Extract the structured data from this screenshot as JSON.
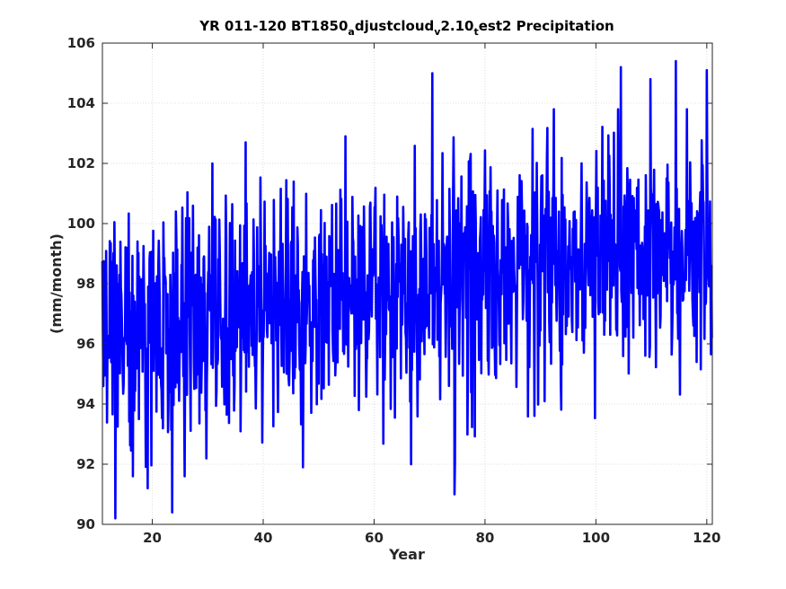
{
  "chart_data": {
    "type": "line",
    "title_parts": [
      {
        "text": "YR 011-120 BT1850",
        "sub": false
      },
      {
        "text": "a",
        "sub": true
      },
      {
        "text": "djustcloud",
        "sub": false
      },
      {
        "text": "v",
        "sub": true
      },
      {
        "text": "2.10",
        "sub": false
      },
      {
        "text": "t",
        "sub": true
      },
      {
        "text": "est2 Precipitation",
        "sub": false
      }
    ],
    "xlabel": "Year",
    "ylabel": "(mm/month)",
    "xlim": [
      11,
      121
    ],
    "ylim": [
      90,
      106
    ],
    "xticks": [
      20,
      40,
      60,
      80,
      100,
      120
    ],
    "yticks": [
      90,
      92,
      94,
      96,
      98,
      100,
      102,
      104,
      106
    ],
    "grid": true,
    "line_color": "#0000ff",
    "series": [
      {
        "frequency": "monthly",
        "start_year": 11,
        "end_year": 121,
        "trend": {
          "x": [
            11,
            30,
            50,
            70,
            90,
            121
          ],
          "y": [
            96.5,
            96.8,
            97.5,
            98.0,
            98.6,
            99.1
          ]
        },
        "spread_sd": 1.8,
        "extremes": [
          {
            "x": 13.3,
            "y": 90.2
          },
          {
            "x": 23.6,
            "y": 90.4
          },
          {
            "x": 19.2,
            "y": 91.2
          },
          {
            "x": 16.5,
            "y": 91.6
          },
          {
            "x": 74.5,
            "y": 91.0
          },
          {
            "x": 70.5,
            "y": 105.0
          },
          {
            "x": 104.5,
            "y": 105.2
          },
          {
            "x": 114.4,
            "y": 105.4
          },
          {
            "x": 120.0,
            "y": 105.1
          },
          {
            "x": 109.8,
            "y": 104.8
          },
          {
            "x": 30.8,
            "y": 102.0
          },
          {
            "x": 54.8,
            "y": 102.9
          },
          {
            "x": 36.8,
            "y": 102.7
          },
          {
            "x": 66.7,
            "y": 92.0
          },
          {
            "x": 47.2,
            "y": 91.9
          }
        ]
      }
    ]
  }
}
